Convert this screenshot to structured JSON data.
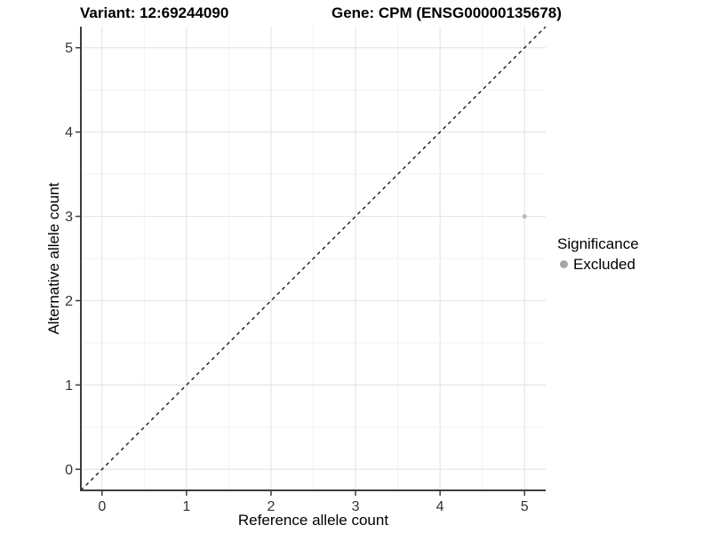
{
  "title": {
    "variant": "Variant: 12:69244090",
    "gene": "Gene: CPM (ENSG00000135678)"
  },
  "axes": {
    "x_label": "Reference allele count",
    "y_label": "Alternative allele count"
  },
  "legend": {
    "title": "Significance",
    "items": [
      {
        "label": "Excluded",
        "color": "#a6a6a6"
      }
    ]
  },
  "colors": {
    "background": "#ffffff",
    "grid_major": "#e6e6e6",
    "grid_minor": "#f2f2f2",
    "axis_line": "#3c3c3c",
    "tick_text": "#333333",
    "reference_line": "#1a1a1a",
    "point": "#bcbcbc"
  },
  "chart_data": {
    "type": "scatter",
    "title": "Variant: 12:69244090    Gene: CPM (ENSG00000135678)",
    "xlabel": "Reference allele count",
    "ylabel": "Alternative allele count",
    "xlim": [
      -0.25,
      5.25
    ],
    "ylim": [
      -0.25,
      5.25
    ],
    "x_ticks": [
      0,
      1,
      2,
      3,
      4,
      5
    ],
    "y_ticks": [
      0,
      1,
      2,
      3,
      4,
      5
    ],
    "x_minor": [
      0.5,
      1.5,
      2.5,
      3.5,
      4.5
    ],
    "y_minor": [
      0.5,
      1.5,
      2.5,
      3.5,
      4.5
    ],
    "grid": true,
    "legend_position": "right",
    "legend_title": "Significance",
    "series": [
      {
        "name": "Excluded",
        "color": "#bcbcbc",
        "points": [
          {
            "x": 5,
            "y": 3
          }
        ]
      }
    ],
    "reference_line": {
      "slope": 1,
      "intercept": 0,
      "style": "dashed",
      "color": "#1a1a1a"
    }
  }
}
